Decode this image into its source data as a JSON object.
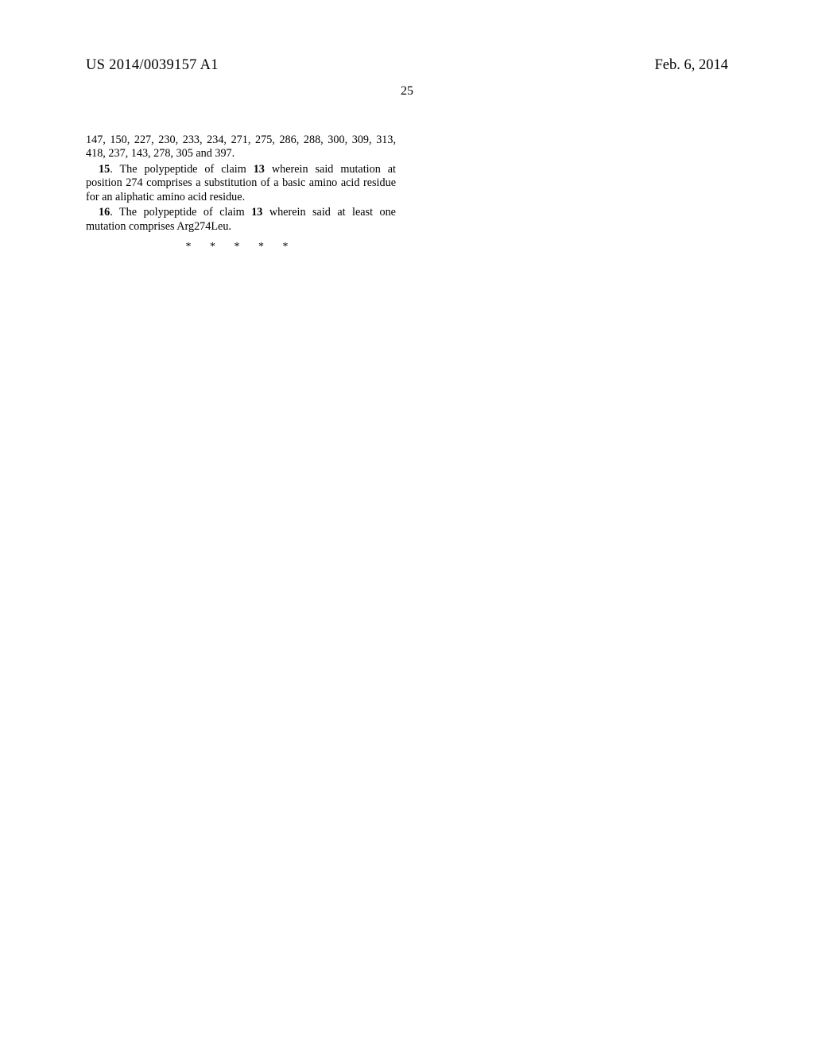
{
  "header": {
    "publication_number": "US 2014/0039157 A1",
    "publication_date": "Feb. 6, 2014"
  },
  "page_number": "25",
  "body": {
    "continuation_line1": "147, 150, 227, 230, 233, 234, 271, 275, 286, 288, 300, 309,",
    "continuation_line2": "313, 418, 237, 143, 278, 305 and 397.",
    "claim15": {
      "number": "15",
      "text_before": ". The polypeptide of claim ",
      "ref": "13",
      "text_after1": " wherein said mutation at",
      "text_line2": "position 274 comprises a substitution of a basic amino acid",
      "text_line3": "residue for an aliphatic amino acid residue."
    },
    "claim16": {
      "number": "16",
      "text_before": ". The polypeptide of claim ",
      "ref": "13",
      "text_after1": " wherein said at least one",
      "text_line2": "mutation comprises Arg274Leu."
    },
    "end_marks": "* * * * *"
  }
}
